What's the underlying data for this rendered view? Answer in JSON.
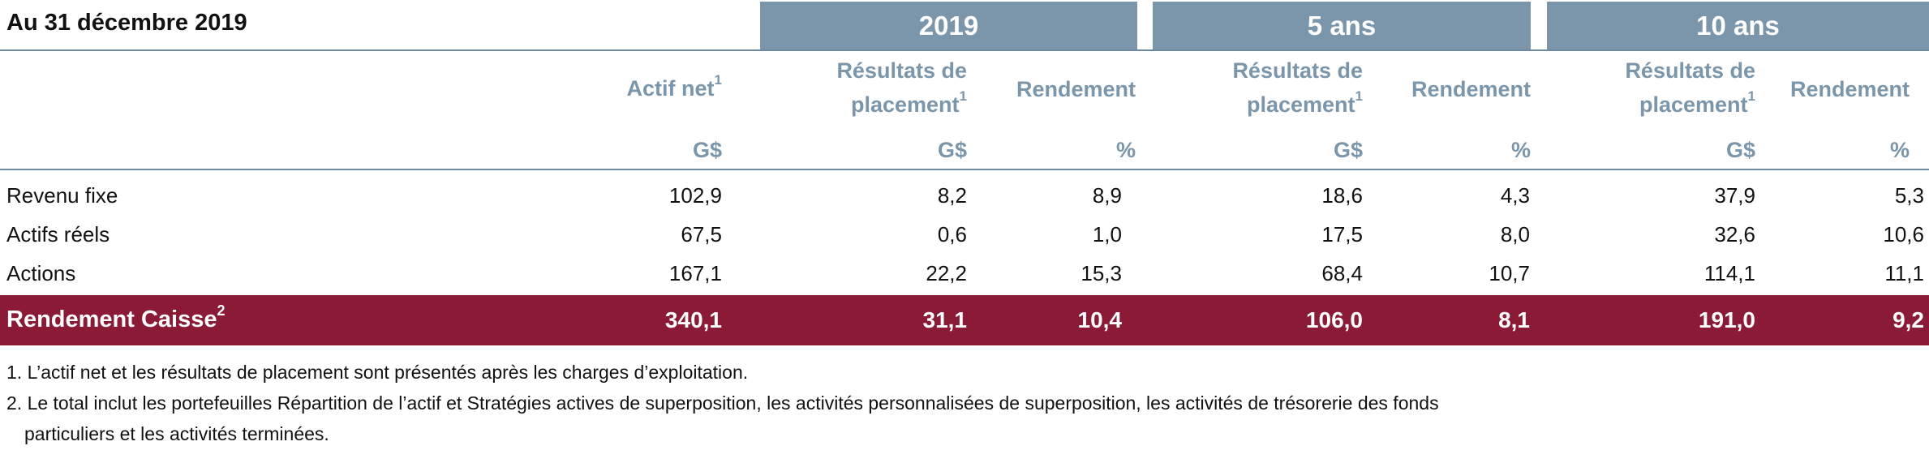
{
  "title": "Au 31 décembre 2019",
  "periods": [
    "2019",
    "5 ans",
    "10 ans"
  ],
  "columns": {
    "net_assets": "Actif net",
    "results_line1": "Résultats de",
    "results_line2": "placement",
    "return": "Rendement",
    "sup1": "1",
    "unit_gdollars": "G$",
    "unit_percent": "%"
  },
  "rows": [
    {
      "label": "Revenu fixe",
      "values": [
        "102,9",
        "8,2",
        "8,9",
        "18,6",
        "4,3",
        "37,9",
        "5,3"
      ]
    },
    {
      "label": "Actifs réels",
      "values": [
        "67,5",
        "0,6",
        "1,0",
        "17,5",
        "8,0",
        "32,6",
        "10,6"
      ]
    },
    {
      "label": "Actions",
      "values": [
        "167,1",
        "22,2",
        "15,3",
        "68,4",
        "10,7",
        "114,1",
        "11,1"
      ]
    }
  ],
  "total": {
    "label": "Rendement Caisse",
    "sup": "2",
    "values": [
      "340,1",
      "31,1",
      "10,4",
      "106,0",
      "8,1",
      "191,0",
      "9,2"
    ]
  },
  "footnotes": [
    "1. L’actif net et les résultats de placement sont présentés après les charges d’exploitation.",
    "2. Le total inclut les portefeuilles Répartition de l’actif et Stratégies actives de superposition, les activités personnalisées de superposition, les activités de trésorerie des fonds",
    "particuliers et les activités terminées."
  ],
  "colors": {
    "header_band": "#7b95ab",
    "total_band": "#8b1a36"
  }
}
